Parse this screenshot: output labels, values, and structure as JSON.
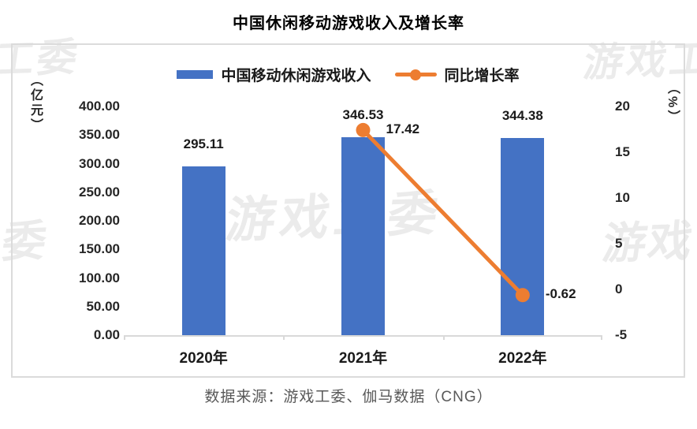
{
  "title": "中国休闲移动游戏收入及增长率",
  "legend": [
    {
      "label": "中国移动休闲游戏收入",
      "type": "bar",
      "color": "#4472C4"
    },
    {
      "label": "同比增长率",
      "type": "line",
      "color": "#ED7D31"
    }
  ],
  "chart_data": {
    "type": "bar+line",
    "title": "中国休闲移动游戏收入及增长率",
    "categories": [
      "2020年",
      "2021年",
      "2022年"
    ],
    "series": [
      {
        "name": "中国移动休闲游戏收入",
        "type": "bar",
        "axis": "left",
        "unit": "亿元",
        "values": [
          295.11,
          346.53,
          344.38
        ],
        "labels": [
          "295.11",
          "346.53",
          "344.38"
        ],
        "color": "#4472C4"
      },
      {
        "name": "同比增长率",
        "type": "line",
        "axis": "right",
        "unit": "%",
        "values": [
          null,
          17.42,
          -0.62
        ],
        "labels": [
          "",
          "17.42",
          "-0.62"
        ],
        "color": "#ED7D31"
      }
    ],
    "left_axis": {
      "unit": "（亿元）",
      "min": 0,
      "max": 400,
      "step": 50,
      "ticks": [
        "400.00",
        "350.00",
        "300.00",
        "250.00",
        "200.00",
        "150.00",
        "100.00",
        "50.00",
        "0.00"
      ]
    },
    "right_axis": {
      "unit": "（%）",
      "min": -5,
      "max": 20,
      "step": 5,
      "ticks": [
        "20",
        "15",
        "10",
        "5",
        "0",
        "-5"
      ]
    },
    "grid": false,
    "legend_position": "top"
  },
  "source": "数据来源：游戏工委、伽马数据（CNG）",
  "watermarks": [
    {
      "text": "工委"
    },
    {
      "text": "游戏工委"
    },
    {
      "text": "游戏工委"
    },
    {
      "text": "工委"
    },
    {
      "text": "游戏"
    }
  ]
}
